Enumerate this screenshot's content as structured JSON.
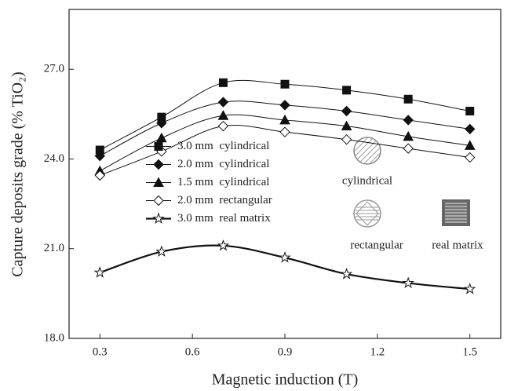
{
  "chart_data": {
    "type": "line",
    "x_label": "Magnetic induction (T)",
    "y_label": "Capture deposits grade (% TiO₂)",
    "x": [
      0.3,
      0.5,
      0.7,
      0.9,
      1.1,
      1.3,
      1.5
    ],
    "xlim": [
      0.2,
      1.6
    ],
    "ylim": [
      18,
      29
    ],
    "xticks": [
      0.3,
      0.6,
      0.9,
      {
        "value": 1.2,
        "label": "1.2"
      },
      1.5
    ],
    "yticks": [
      {
        "value": 18,
        "label": "18.0"
      },
      {
        "value": 21,
        "label": "21.0"
      },
      {
        "value": 24,
        "label": "24.0"
      },
      {
        "value": 27,
        "label": "27.0"
      }
    ],
    "legend": "center left",
    "series": [
      {
        "name": "3.0 mm  cylindrical",
        "color": "#111111",
        "marker": "square",
        "line_width": 1,
        "values": [
          24.3,
          25.4,
          26.55,
          26.5,
          26.3,
          26.0,
          25.6
        ]
      },
      {
        "name": "2.0 mm  cylindrical",
        "color": "#111111",
        "marker": "diamond",
        "line_width": 1,
        "values": [
          24.1,
          25.2,
          25.9,
          25.8,
          25.6,
          25.3,
          25.0
        ]
      },
      {
        "name": "1.5 mm  cylindrical",
        "color": "#111111",
        "marker": "triangle",
        "line_width": 1,
        "values": [
          23.6,
          24.7,
          25.45,
          25.3,
          25.1,
          24.75,
          24.45
        ]
      },
      {
        "name": "2.0 mm  rectangular",
        "color": "#111111",
        "marker": "open-diamond",
        "line_width": 1,
        "values": [
          23.45,
          24.25,
          25.1,
          24.9,
          24.65,
          24.35,
          24.05
        ]
      },
      {
        "name": "3.0 mm  real matrix",
        "color": "#111111",
        "marker": "open-star",
        "line_width": 2.2,
        "values": [
          20.2,
          20.9,
          21.1,
          20.7,
          20.15,
          19.85,
          19.65
        ]
      }
    ],
    "annotations": [
      "cylindrical",
      "rectangular",
      "real matrix"
    ]
  }
}
